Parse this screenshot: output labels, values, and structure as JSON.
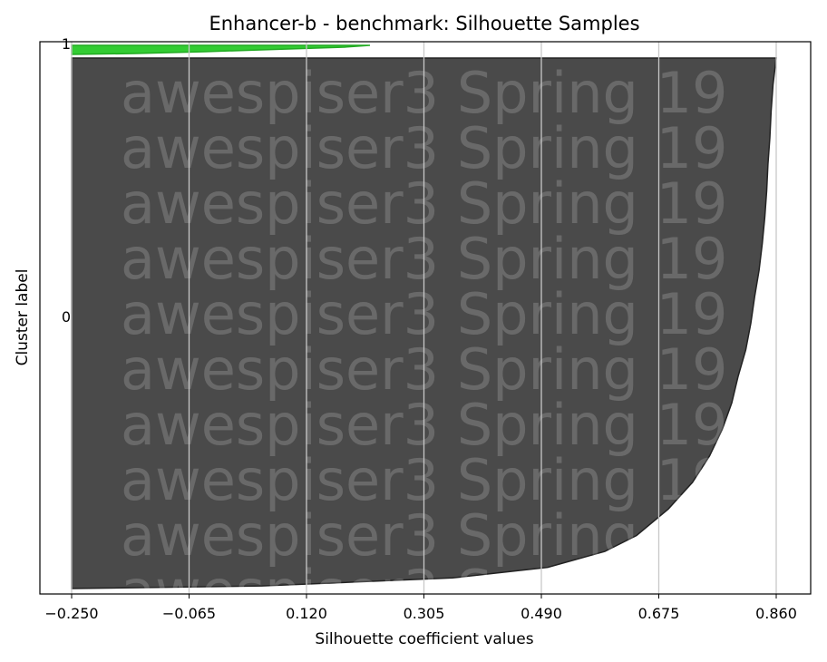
{
  "chart_data": {
    "type": "area",
    "title": "Enhancer-b - benchmark: Silhouette Samples",
    "xlabel": "Silhouette coefficient values",
    "ylabel": "Cluster label",
    "xlim": [
      -0.25,
      0.86
    ],
    "x_ticks": [
      "−0.250",
      "−0.065",
      "0.120",
      "0.305",
      "0.490",
      "0.675",
      "0.860"
    ],
    "x_tick_values": [
      -0.25,
      -0.065,
      0.12,
      0.305,
      0.49,
      0.675,
      0.86
    ],
    "y_ticks": [
      "0",
      "1"
    ],
    "grid": "vertical",
    "legend": "none",
    "watermark": "awespiser3 Spring 19",
    "clusters": [
      {
        "label": "0",
        "color": "#4a4a4a",
        "edge_color": "#222222",
        "size": 950,
        "silhouette_profile": [
          [
            0.0,
            0.86
          ],
          [
            0.02,
            0.858
          ],
          [
            0.05,
            0.855
          ],
          [
            0.1,
            0.852
          ],
          [
            0.15,
            0.85
          ],
          [
            0.2,
            0.847
          ],
          [
            0.25,
            0.845
          ],
          [
            0.3,
            0.842
          ],
          [
            0.35,
            0.838
          ],
          [
            0.4,
            0.833
          ],
          [
            0.45,
            0.826
          ],
          [
            0.5,
            0.82
          ],
          [
            0.55,
            0.812
          ],
          [
            0.6,
            0.8
          ],
          [
            0.65,
            0.79
          ],
          [
            0.7,
            0.775
          ],
          [
            0.75,
            0.755
          ],
          [
            0.8,
            0.728
          ],
          [
            0.85,
            0.69
          ],
          [
            0.9,
            0.64
          ],
          [
            0.93,
            0.59
          ],
          [
            0.96,
            0.5
          ],
          [
            0.98,
            0.35
          ],
          [
            0.995,
            0.05
          ],
          [
            1.0,
            -0.25
          ]
        ]
      },
      {
        "label": "1",
        "color": "#33cc33",
        "edge_color": "#22aa22",
        "size": 15,
        "silhouette_profile": [
          [
            0.0,
            0.22
          ],
          [
            0.2,
            0.18
          ],
          [
            0.45,
            0.07
          ],
          [
            0.7,
            -0.04
          ],
          [
            0.9,
            -0.15
          ],
          [
            1.0,
            -0.25
          ]
        ]
      }
    ]
  }
}
